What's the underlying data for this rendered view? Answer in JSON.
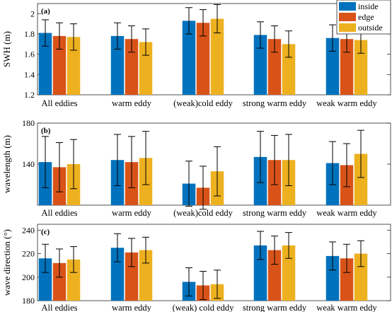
{
  "colors": {
    "inside": "#0072BD",
    "edge": "#D95319",
    "outside": "#EDB120"
  },
  "legend": [
    "inside",
    "edge",
    "outside"
  ],
  "chart_data": [
    {
      "type": "bar",
      "panel_label": "(a)",
      "ylabel": "SWH (m)",
      "ylim": [
        1.2,
        2.1
      ],
      "yticks": [
        1.2,
        1.4,
        1.6,
        1.8,
        2
      ],
      "ytick_labels": [
        "1.2",
        "1.4",
        "1.6",
        "1.8",
        "2"
      ],
      "categories": [
        "All eddies",
        "warm eddy",
        "(weak)cold eddy",
        "strong warm eddy",
        "weak warm eddy"
      ],
      "series": [
        {
          "name": "inside",
          "values": [
            1.81,
            1.78,
            1.93,
            1.79,
            1.76
          ],
          "err": [
            0.13,
            0.13,
            0.13,
            0.13,
            0.13
          ]
        },
        {
          "name": "edge",
          "values": [
            1.78,
            1.75,
            1.91,
            1.75,
            1.75
          ],
          "err": [
            0.13,
            0.13,
            0.13,
            0.13,
            0.13
          ]
        },
        {
          "name": "outside",
          "values": [
            1.77,
            1.72,
            1.95,
            1.7,
            1.74
          ],
          "err": [
            0.13,
            0.13,
            0.14,
            0.13,
            0.13
          ]
        }
      ]
    },
    {
      "type": "bar",
      "panel_label": "(b)",
      "ylabel": "wavelength (m)",
      "ylim": [
        100,
        180
      ],
      "yticks": [
        140,
        180
      ],
      "ytick_labels": [
        "140",
        "180"
      ],
      "categories": [
        "All eddies",
        "warm eddy",
        "(weak)cold eddy",
        "strong warm eddy",
        "weak warm eddy"
      ],
      "series": [
        {
          "name": "inside",
          "values": [
            142,
            144,
            121,
            147,
            141
          ],
          "err": [
            25,
            25,
            22,
            25,
            21
          ]
        },
        {
          "name": "edge",
          "values": [
            137,
            142,
            117,
            144,
            139
          ],
          "err": [
            24,
            25,
            21,
            24,
            21
          ]
        },
        {
          "name": "outside",
          "values": [
            140,
            146,
            133,
            144,
            150
          ],
          "err": [
            24,
            26,
            24,
            25,
            23
          ]
        }
      ]
    },
    {
      "type": "bar",
      "panel_label": "(c)",
      "ylabel": "wave direction (°)",
      "ylim": [
        180,
        245
      ],
      "yticks": [
        180,
        200,
        220,
        240
      ],
      "ytick_labels": [
        "180",
        "200",
        "220",
        "240"
      ],
      "categories": [
        "All eddies",
        "warm eddy",
        "(weak) cold eddy",
        "strong warm eddy",
        "weak warm eddy"
      ],
      "series": [
        {
          "name": "inside",
          "values": [
            216,
            225,
            196,
            227,
            218
          ],
          "err": [
            12,
            12,
            12,
            12,
            12
          ]
        },
        {
          "name": "edge",
          "values": [
            212,
            221,
            193,
            223,
            216
          ],
          "err": [
            12,
            12,
            12,
            12,
            12
          ]
        },
        {
          "name": "outside",
          "values": [
            215,
            223,
            194,
            227,
            220
          ],
          "err": [
            11,
            11,
            12,
            11,
            11
          ]
        }
      ]
    }
  ]
}
